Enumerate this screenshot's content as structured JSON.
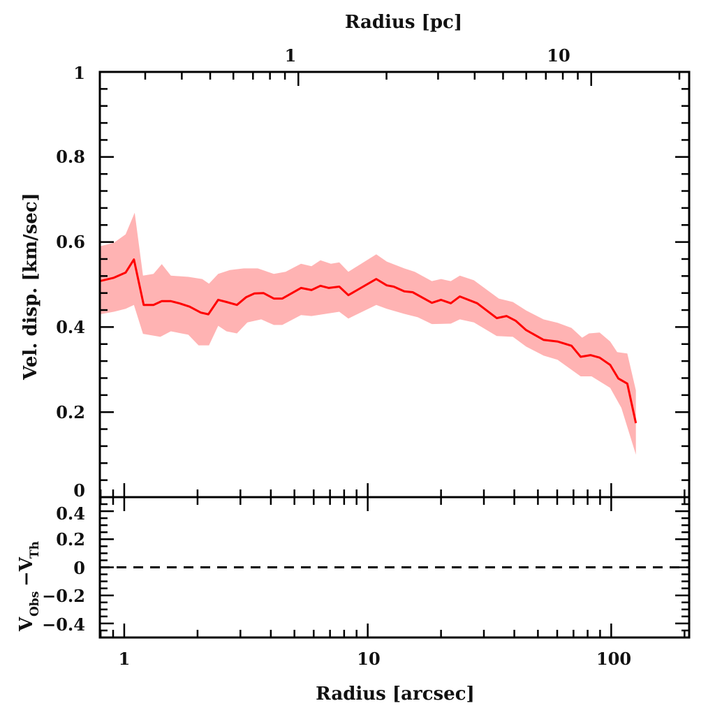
{
  "chart_data": {
    "type": "line",
    "panels": [
      {
        "name": "main",
        "ylabel": "Vel. disp. [km/sec]",
        "ylim": [
          0,
          1
        ],
        "yticks": [
          0,
          0.2,
          0.4,
          0.6,
          0.8,
          1
        ],
        "ytick_labels": [
          "0",
          "0.2",
          "0.4",
          "0.6",
          "0.8",
          "1"
        ],
        "series": [
          {
            "name": "velocity dispersion",
            "color": "#ff0000",
            "x": [
              0.794,
              0.906,
              1.013,
              1.096,
              1.202,
              1.318,
              1.426,
              1.554,
              1.681,
              1.856,
              2.063,
              2.216,
              2.431,
              2.63,
              2.903,
              3.163,
              3.425,
              3.73,
              4.117,
              4.457,
              5.322,
              5.876,
              6.395,
              6.924,
              7.642,
              8.326,
              10.84,
              11.97,
              12.79,
              14.13,
              15.29,
              18.34,
              19.99,
              21.93,
              23.9,
              28.16,
              33.88,
              37.16,
              40.47,
              44.72,
              52.72,
              60.18,
              68.68,
              74.9,
              82.2,
              89.66,
              99.05,
              107.0,
              116.4,
              126.3
            ],
            "y": [
              0.508,
              0.516,
              0.528,
              0.559,
              0.452,
              0.452,
              0.461,
              0.461,
              0.456,
              0.448,
              0.434,
              0.43,
              0.464,
              0.459,
              0.452,
              0.47,
              0.479,
              0.48,
              0.467,
              0.467,
              0.492,
              0.487,
              0.497,
              0.492,
              0.495,
              0.475,
              0.513,
              0.498,
              0.495,
              0.484,
              0.482,
              0.457,
              0.464,
              0.456,
              0.472,
              0.456,
              0.421,
              0.426,
              0.415,
              0.393,
              0.37,
              0.366,
              0.356,
              0.33,
              0.334,
              0.328,
              0.311,
              0.279,
              0.267,
              0.174
            ]
          }
        ],
        "band": {
          "name": "uncertainty band",
          "color": "#ffb3b3",
          "upper": {
            "x": [
              0.794,
              0.906,
              1.013,
              1.104,
              1.194,
              1.318,
              1.426,
              1.554,
              1.833,
              2.09,
              2.229,
              2.431,
              2.716,
              3.097,
              3.535,
              4.117,
              4.6,
              5.322,
              5.876,
              6.395,
              7.059,
              7.642,
              8.326,
              10.84,
              11.97,
              14.13,
              15.6,
              18.34,
              19.99,
              21.93,
              23.9,
              27.29,
              34.55,
              39.45,
              44.72,
              52.72,
              60.18,
              68.68,
              75.94,
              81.07,
              89.66,
              99.05,
              105.8,
              116.4,
              126.3
            ],
            "y": [
              0.59,
              0.598,
              0.618,
              0.669,
              0.521,
              0.525,
              0.548,
              0.521,
              0.518,
              0.513,
              0.502,
              0.525,
              0.534,
              0.538,
              0.538,
              0.525,
              0.53,
              0.549,
              0.543,
              0.557,
              0.549,
              0.552,
              0.53,
              0.571,
              0.554,
              0.538,
              0.53,
              0.508,
              0.513,
              0.508,
              0.521,
              0.51,
              0.467,
              0.459,
              0.439,
              0.418,
              0.41,
              0.398,
              0.375,
              0.385,
              0.387,
              0.366,
              0.341,
              0.338,
              0.251
            ]
          },
          "lower": {
            "x": [
              0.794,
              0.906,
              1.013,
              1.096,
              1.194,
              1.407,
              1.554,
              1.833,
              2.02,
              2.229,
              2.431,
              2.63,
              2.903,
              3.205,
              3.653,
              4.117,
              4.457,
              5.322,
              5.876,
              7.642,
              8.326,
              10.84,
              11.97,
              14.13,
              16.06,
              18.34,
              21.93,
              23.9,
              27.29,
              33.88,
              39.45,
              44.72,
              52.72,
              60.18,
              74.9,
              83.02,
              99.05,
              110.1,
              126.3
            ],
            "y": [
              0.43,
              0.436,
              0.443,
              0.452,
              0.384,
              0.377,
              0.39,
              0.382,
              0.357,
              0.357,
              0.403,
              0.39,
              0.385,
              0.411,
              0.418,
              0.405,
              0.405,
              0.428,
              0.426,
              0.436,
              0.42,
              0.452,
              0.443,
              0.431,
              0.423,
              0.407,
              0.408,
              0.418,
              0.411,
              0.379,
              0.377,
              0.354,
              0.333,
              0.323,
              0.284,
              0.284,
              0.257,
              0.21,
              0.1
            ]
          }
        }
      },
      {
        "name": "residual",
        "ylabel_main": "V",
        "ylabel_sub1": "Obs",
        "ylabel_minus": "−V",
        "ylabel_sub2": "Th",
        "ylim": [
          -0.5,
          0.5
        ],
        "yticks": [
          -0.4,
          -0.2,
          0,
          0.2,
          0.4
        ],
        "ytick_labels": [
          "−0.4",
          "−0.2",
          "0",
          "0.2",
          "0.4"
        ],
        "reference_line": {
          "y": 0,
          "style": "dashed",
          "color": "#000000"
        }
      }
    ],
    "xaxis_bottom": {
      "label": "Radius [arcsec]",
      "scale": "log",
      "xlim": [
        0.794,
        209
      ],
      "ticks": [
        1,
        10,
        100
      ],
      "tick_labels": [
        "1",
        "10",
        "100"
      ]
    },
    "xaxis_top": {
      "label": "Radius [pc]",
      "scale": "log",
      "xlim": [
        0.21,
        21.6
      ],
      "ticks": [
        1,
        10
      ],
      "tick_labels": [
        "1",
        "10"
      ]
    }
  }
}
